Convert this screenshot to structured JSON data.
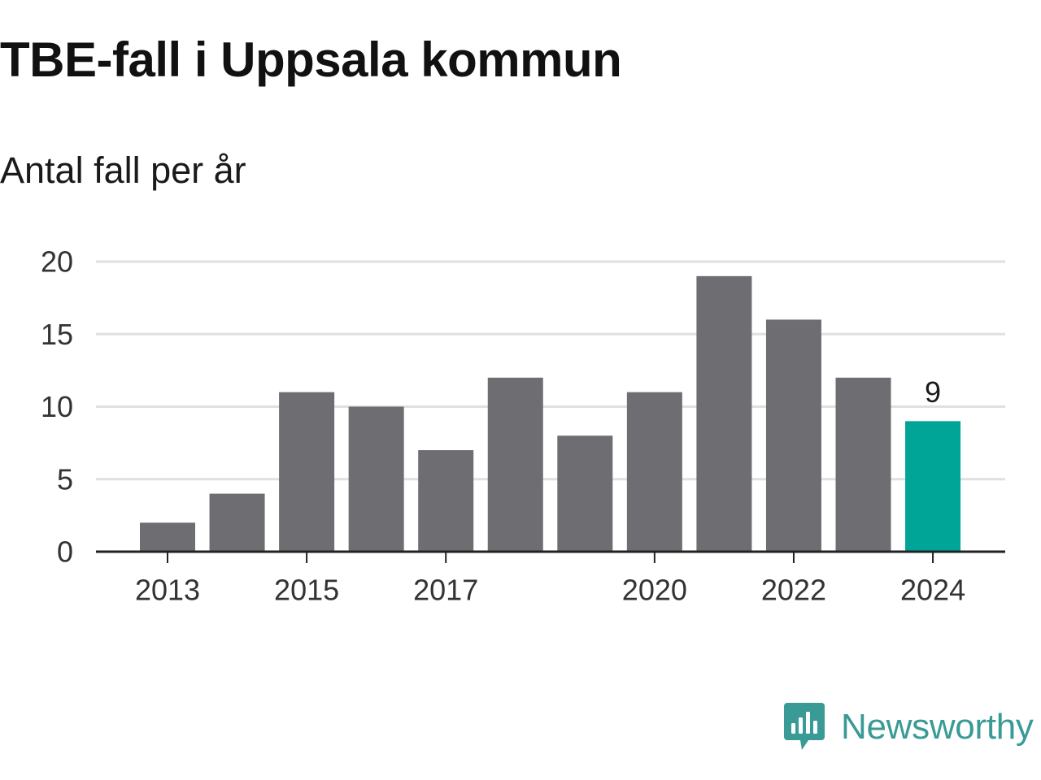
{
  "title": "TBE-fall i Uppsala kommun",
  "subtitle": "Antal fall per år",
  "brand": {
    "name": "Newsworthy",
    "icon": "newsworthy-logo-icon",
    "color": "#3a9a95"
  },
  "chart_data": {
    "type": "bar",
    "categories": [
      "2013",
      "2014",
      "2015",
      "2016",
      "2017",
      "2018",
      "2019",
      "2020",
      "2021",
      "2022",
      "2023",
      "2024"
    ],
    "values": [
      2,
      4,
      11,
      10,
      7,
      12,
      8,
      11,
      19,
      16,
      12,
      9
    ],
    "x_tick_labels": [
      "2013",
      "2015",
      "2017",
      "2020",
      "2022",
      "2024"
    ],
    "y_ticks": [
      0,
      5,
      10,
      15,
      20
    ],
    "ylim": [
      0,
      20
    ],
    "grid": true,
    "data_labels": [
      {
        "category": "2024",
        "text": "9"
      }
    ],
    "colors": {
      "default": "#6e6d72",
      "highlight": "#00a598",
      "highlight_category": "2024",
      "grid": "#e0e0e0",
      "axis": "#222222"
    }
  }
}
